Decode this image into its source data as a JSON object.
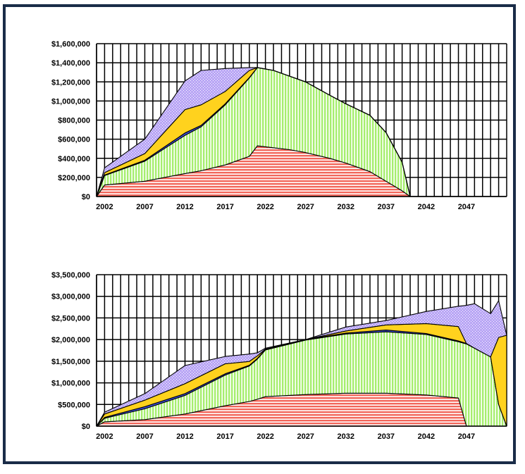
{
  "chart_data": [
    {
      "type": "area",
      "stacked": true,
      "grid": true,
      "ylim": [
        0,
        1600000
      ],
      "xlim": [
        2001,
        2052
      ],
      "x_ticks": [
        "2002",
        "2007",
        "2012",
        "2017",
        "2022",
        "2027",
        "2032",
        "2037",
        "2042",
        "2047"
      ],
      "y_ticks": [
        "$0",
        "$200,000",
        "$400,000",
        "$600,000",
        "$800,000",
        "$1,000,000",
        "$1,200,000",
        "$1,400,000",
        "$1,600,000"
      ],
      "colors": [
        "#f2665a",
        "#a6ee6e",
        "#3d4fd8",
        "#ffd21e",
        "#b9a6f5"
      ],
      "x": [
        2001,
        2002,
        2007,
        2012,
        2014,
        2017,
        2020,
        2021,
        2023,
        2025,
        2027,
        2030,
        2032,
        2035,
        2037,
        2039,
        2040,
        2041
      ],
      "series": [
        {
          "values": [
            0,
            120000,
            160000,
            240000,
            270000,
            330000,
            420000,
            530000,
            510000,
            490000,
            460000,
            400000,
            350000,
            260000,
            160000,
            60000,
            0,
            0
          ]
        },
        {
          "values": [
            0,
            100000,
            210000,
            400000,
            460000,
            630000,
            820000,
            820000,
            810000,
            770000,
            740000,
            660000,
            620000,
            590000,
            510000,
            300000,
            0,
            0
          ]
        },
        {
          "values": [
            0,
            5000,
            10000,
            25000,
            15000,
            10000,
            5000,
            0,
            0,
            0,
            0,
            0,
            0,
            0,
            0,
            0,
            0,
            0
          ]
        },
        {
          "values": [
            0,
            25000,
            70000,
            245000,
            215000,
            130000,
            75000,
            0,
            0,
            0,
            0,
            0,
            0,
            0,
            0,
            0,
            0,
            0
          ]
        },
        {
          "values": [
            0,
            50000,
            150000,
            300000,
            360000,
            240000,
            30000,
            0,
            0,
            0,
            0,
            0,
            0,
            0,
            0,
            0,
            0,
            0
          ]
        }
      ]
    },
    {
      "type": "area",
      "stacked": true,
      "grid": true,
      "ylim": [
        0,
        3500000
      ],
      "xlim": [
        2001,
        2052
      ],
      "x_ticks": [
        "2002",
        "2007",
        "2012",
        "2017",
        "2022",
        "2027",
        "2032",
        "2037",
        "2042",
        "2047"
      ],
      "y_ticks": [
        "$0",
        "$500,000",
        "$1,000,000",
        "$1,500,000",
        "$2,000,000",
        "$2,500,000",
        "$3,000,000",
        "$3,500,000"
      ],
      "colors": [
        "#f2665a",
        "#a6ee6e",
        "#3d4fd8",
        "#ffd21e",
        "#b9a6f5"
      ],
      "x": [
        2001,
        2002,
        2007,
        2012,
        2017,
        2020,
        2021,
        2022,
        2027,
        2032,
        2037,
        2042,
        2046,
        2047,
        2048,
        2050,
        2051,
        2052
      ],
      "series": [
        {
          "values": [
            0,
            100000,
            150000,
            280000,
            470000,
            570000,
            620000,
            680000,
            730000,
            760000,
            760000,
            720000,
            650000,
            0,
            0,
            0,
            0,
            0
          ]
        },
        {
          "values": [
            0,
            80000,
            250000,
            430000,
            710000,
            820000,
            930000,
            1080000,
            1260000,
            1370000,
            1420000,
            1400000,
            1300000,
            1900000,
            1800000,
            1600000,
            500000,
            0
          ]
        },
        {
          "values": [
            0,
            20000,
            50000,
            40000,
            30000,
            15000,
            15000,
            10000,
            10000,
            20000,
            40000,
            20000,
            20000,
            10000,
            0,
            0,
            0,
            0
          ]
        },
        {
          "values": [
            0,
            80000,
            150000,
            230000,
            230000,
            90000,
            60000,
            10000,
            0,
            50000,
            120000,
            230000,
            330000,
            0,
            0,
            0,
            1550000,
            2100000
          ]
        },
        {
          "values": [
            0,
            40000,
            150000,
            420000,
            170000,
            170000,
            70000,
            20000,
            0,
            90000,
            100000,
            280000,
            470000,
            880000,
            1030000,
            1000000,
            850000,
            0
          ]
        }
      ]
    }
  ]
}
